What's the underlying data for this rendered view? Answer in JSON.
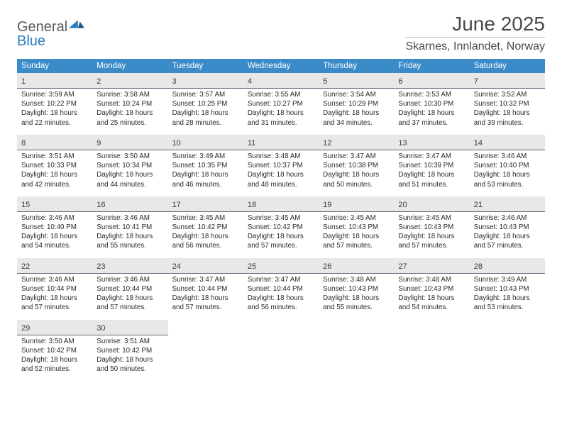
{
  "logo": {
    "word1": "General",
    "word2": "Blue"
  },
  "title": "June 2025",
  "location": "Skarnes, Innlandet, Norway",
  "colors": {
    "header_bg": "#3b8bc9",
    "daynum_bg": "#e8e8e8",
    "daynum_border": "#5a6a7a",
    "text": "#333333",
    "logo_gray": "#5a5a5a",
    "logo_blue": "#2b7bbd"
  },
  "font": {
    "title_pt": 28,
    "location_pt": 16,
    "weekday_pt": 11.5,
    "daynum_pt": 11,
    "body_pt": 9.8
  },
  "weekdays": [
    "Sunday",
    "Monday",
    "Tuesday",
    "Wednesday",
    "Thursday",
    "Friday",
    "Saturday"
  ],
  "weeks": [
    [
      {
        "n": "1",
        "sunrise": "3:59 AM",
        "sunset": "10:22 PM",
        "daylight": "18 hours and 22 minutes."
      },
      {
        "n": "2",
        "sunrise": "3:58 AM",
        "sunset": "10:24 PM",
        "daylight": "18 hours and 25 minutes."
      },
      {
        "n": "3",
        "sunrise": "3:57 AM",
        "sunset": "10:25 PM",
        "daylight": "18 hours and 28 minutes."
      },
      {
        "n": "4",
        "sunrise": "3:55 AM",
        "sunset": "10:27 PM",
        "daylight": "18 hours and 31 minutes."
      },
      {
        "n": "5",
        "sunrise": "3:54 AM",
        "sunset": "10:29 PM",
        "daylight": "18 hours and 34 minutes."
      },
      {
        "n": "6",
        "sunrise": "3:53 AM",
        "sunset": "10:30 PM",
        "daylight": "18 hours and 37 minutes."
      },
      {
        "n": "7",
        "sunrise": "3:52 AM",
        "sunset": "10:32 PM",
        "daylight": "18 hours and 39 minutes."
      }
    ],
    [
      {
        "n": "8",
        "sunrise": "3:51 AM",
        "sunset": "10:33 PM",
        "daylight": "18 hours and 42 minutes."
      },
      {
        "n": "9",
        "sunrise": "3:50 AM",
        "sunset": "10:34 PM",
        "daylight": "18 hours and 44 minutes."
      },
      {
        "n": "10",
        "sunrise": "3:49 AM",
        "sunset": "10:35 PM",
        "daylight": "18 hours and 46 minutes."
      },
      {
        "n": "11",
        "sunrise": "3:48 AM",
        "sunset": "10:37 PM",
        "daylight": "18 hours and 48 minutes."
      },
      {
        "n": "12",
        "sunrise": "3:47 AM",
        "sunset": "10:38 PM",
        "daylight": "18 hours and 50 minutes."
      },
      {
        "n": "13",
        "sunrise": "3:47 AM",
        "sunset": "10:39 PM",
        "daylight": "18 hours and 51 minutes."
      },
      {
        "n": "14",
        "sunrise": "3:46 AM",
        "sunset": "10:40 PM",
        "daylight": "18 hours and 53 minutes."
      }
    ],
    [
      {
        "n": "15",
        "sunrise": "3:46 AM",
        "sunset": "10:40 PM",
        "daylight": "18 hours and 54 minutes."
      },
      {
        "n": "16",
        "sunrise": "3:46 AM",
        "sunset": "10:41 PM",
        "daylight": "18 hours and 55 minutes."
      },
      {
        "n": "17",
        "sunrise": "3:45 AM",
        "sunset": "10:42 PM",
        "daylight": "18 hours and 56 minutes."
      },
      {
        "n": "18",
        "sunrise": "3:45 AM",
        "sunset": "10:42 PM",
        "daylight": "18 hours and 57 minutes."
      },
      {
        "n": "19",
        "sunrise": "3:45 AM",
        "sunset": "10:43 PM",
        "daylight": "18 hours and 57 minutes."
      },
      {
        "n": "20",
        "sunrise": "3:45 AM",
        "sunset": "10:43 PM",
        "daylight": "18 hours and 57 minutes."
      },
      {
        "n": "21",
        "sunrise": "3:46 AM",
        "sunset": "10:43 PM",
        "daylight": "18 hours and 57 minutes."
      }
    ],
    [
      {
        "n": "22",
        "sunrise": "3:46 AM",
        "sunset": "10:44 PM",
        "daylight": "18 hours and 57 minutes."
      },
      {
        "n": "23",
        "sunrise": "3:46 AM",
        "sunset": "10:44 PM",
        "daylight": "18 hours and 57 minutes."
      },
      {
        "n": "24",
        "sunrise": "3:47 AM",
        "sunset": "10:44 PM",
        "daylight": "18 hours and 57 minutes."
      },
      {
        "n": "25",
        "sunrise": "3:47 AM",
        "sunset": "10:44 PM",
        "daylight": "18 hours and 56 minutes."
      },
      {
        "n": "26",
        "sunrise": "3:48 AM",
        "sunset": "10:43 PM",
        "daylight": "18 hours and 55 minutes."
      },
      {
        "n": "27",
        "sunrise": "3:48 AM",
        "sunset": "10:43 PM",
        "daylight": "18 hours and 54 minutes."
      },
      {
        "n": "28",
        "sunrise": "3:49 AM",
        "sunset": "10:43 PM",
        "daylight": "18 hours and 53 minutes."
      }
    ],
    [
      {
        "n": "29",
        "sunrise": "3:50 AM",
        "sunset": "10:42 PM",
        "daylight": "18 hours and 52 minutes."
      },
      {
        "n": "30",
        "sunrise": "3:51 AM",
        "sunset": "10:42 PM",
        "daylight": "18 hours and 50 minutes."
      },
      null,
      null,
      null,
      null,
      null
    ]
  ],
  "labels": {
    "sunrise": "Sunrise:",
    "sunset": "Sunset:",
    "daylight": "Daylight:"
  }
}
